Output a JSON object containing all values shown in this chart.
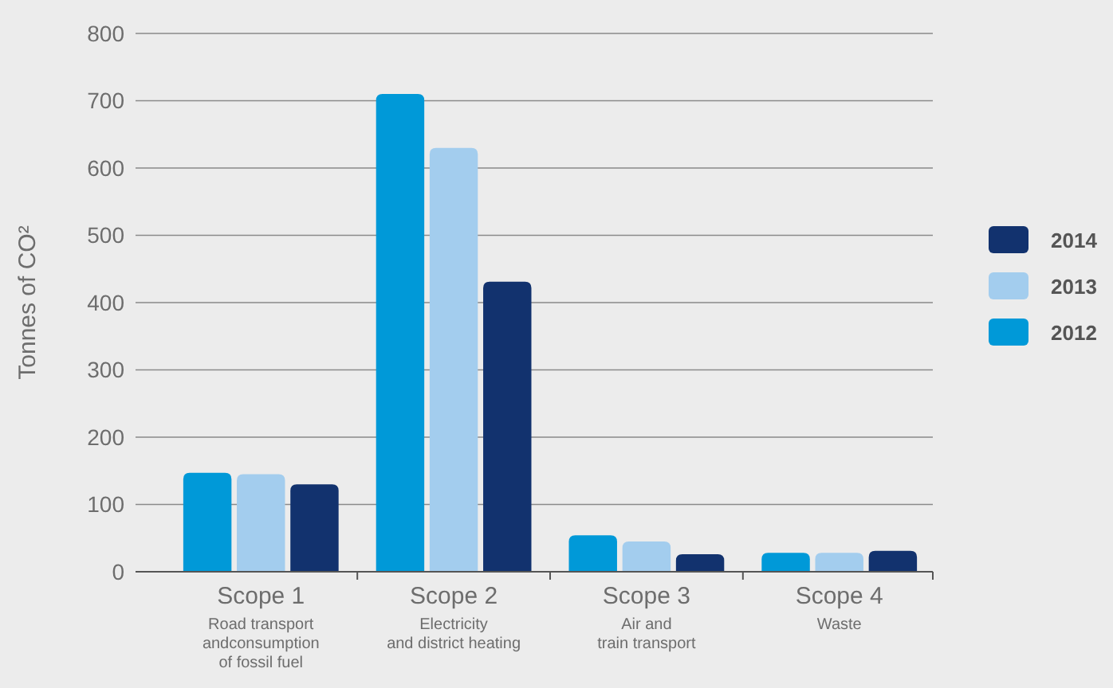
{
  "chart_data": {
    "type": "bar",
    "ylabel": "Tonnes of CO²",
    "categories": [
      "Scope 1\nRoad transport\nandconsumption\nof fossil fuel",
      "Scope 2\nElectricity\nand district heating",
      "Scope 3\nAir and\ntrain transport",
      "Scope 4\nWaste"
    ],
    "series": [
      {
        "name": "2012",
        "color": "#0099d8",
        "values": [
          147,
          710,
          54,
          28
        ]
      },
      {
        "name": "2013",
        "color": "#a3cdee",
        "values": [
          145,
          630,
          45,
          28
        ]
      },
      {
        "name": "2014",
        "color": "#12326e",
        "values": [
          130,
          431,
          26,
          31
        ]
      }
    ],
    "ylim": [
      0,
      800
    ],
    "yticks": [
      0,
      100,
      200,
      300,
      400,
      500,
      600,
      700,
      800
    ],
    "grid": "y",
    "legend": "right"
  }
}
